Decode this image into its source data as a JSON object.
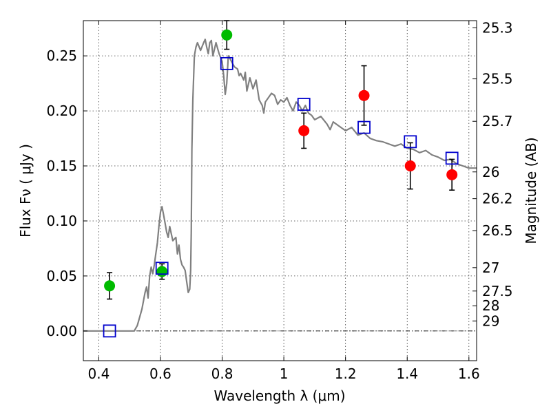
{
  "chart_data": {
    "type": "scatter",
    "xlabel": "Wavelength  λ (μm)",
    "ylabel": "Flux  Fν  ( μJy )",
    "y2label": "Magnitude (AB)",
    "xlim": [
      0.35,
      1.625
    ],
    "ylim": [
      -0.027,
      0.282
    ],
    "grid": true,
    "x_ticks": [
      0.4,
      0.6,
      0.8,
      1.0,
      1.2,
      1.4,
      1.6
    ],
    "x_tick_labels": [
      "0.4",
      "0.6",
      "0.8",
      "1",
      "1.2",
      "1.4",
      "1.6"
    ],
    "y_ticks": [
      0.0,
      0.05,
      0.1,
      0.15,
      0.2,
      0.25
    ],
    "y_tick_labels": [
      "0.00",
      "0.05",
      "0.10",
      "0.15",
      "0.20",
      "0.25"
    ],
    "magnitude_ticks": [
      25.3,
      25.5,
      25.7,
      26,
      26.2,
      26.5,
      27,
      27.5,
      28,
      29
    ],
    "magnitude_tick_labels": [
      "25.3",
      "25.5",
      "25.7",
      "26",
      "26.2",
      "26.5",
      "27",
      "27.5",
      "28",
      "29"
    ],
    "colors": {
      "model": "#808080",
      "green_points": "#00bb00",
      "red_points": "#ff0000",
      "model_squares": "#0000cc",
      "errorbar": "#000000"
    },
    "model_spectrum": {
      "x": [
        0.35,
        0.515,
        0.525,
        0.54,
        0.55,
        0.555,
        0.56,
        0.565,
        0.57,
        0.575,
        0.58,
        0.585,
        0.59,
        0.595,
        0.6,
        0.605,
        0.61,
        0.615,
        0.62,
        0.625,
        0.63,
        0.64,
        0.65,
        0.655,
        0.66,
        0.665,
        0.67,
        0.675,
        0.68,
        0.685,
        0.69,
        0.695,
        0.698,
        0.7,
        0.702,
        0.705,
        0.71,
        0.715,
        0.72,
        0.73,
        0.74,
        0.745,
        0.75,
        0.755,
        0.76,
        0.765,
        0.77,
        0.78,
        0.79,
        0.8,
        0.805,
        0.81,
        0.815,
        0.82,
        0.825,
        0.83,
        0.84,
        0.85,
        0.855,
        0.86,
        0.87,
        0.875,
        0.88,
        0.89,
        0.9,
        0.91,
        0.92,
        0.93,
        0.935,
        0.94,
        0.95,
        0.96,
        0.97,
        0.98,
        0.99,
        1.0,
        1.01,
        1.02,
        1.03,
        1.04,
        1.05,
        1.06,
        1.07,
        1.08,
        1.09,
        1.1,
        1.12,
        1.14,
        1.15,
        1.16,
        1.18,
        1.2,
        1.22,
        1.24,
        1.26,
        1.28,
        1.3,
        1.32,
        1.34,
        1.36,
        1.38,
        1.4,
        1.42,
        1.44,
        1.46,
        1.48,
        1.5,
        1.52,
        1.54,
        1.56,
        1.58,
        1.6,
        1.625
      ],
      "y": [
        0.0,
        0.0,
        0.005,
        0.02,
        0.035,
        0.04,
        0.03,
        0.05,
        0.058,
        0.052,
        0.06,
        0.07,
        0.08,
        0.095,
        0.108,
        0.113,
        0.106,
        0.098,
        0.09,
        0.085,
        0.095,
        0.082,
        0.085,
        0.07,
        0.078,
        0.065,
        0.06,
        0.058,
        0.055,
        0.045,
        0.035,
        0.038,
        0.055,
        0.09,
        0.165,
        0.21,
        0.25,
        0.258,
        0.262,
        0.255,
        0.262,
        0.265,
        0.258,
        0.252,
        0.262,
        0.264,
        0.25,
        0.262,
        0.252,
        0.245,
        0.232,
        0.215,
        0.225,
        0.25,
        0.248,
        0.245,
        0.24,
        0.238,
        0.232,
        0.234,
        0.228,
        0.235,
        0.218,
        0.23,
        0.22,
        0.228,
        0.21,
        0.205,
        0.198,
        0.208,
        0.212,
        0.216,
        0.214,
        0.206,
        0.21,
        0.208,
        0.212,
        0.205,
        0.2,
        0.208,
        0.205,
        0.2,
        0.205,
        0.198,
        0.196,
        0.192,
        0.195,
        0.188,
        0.183,
        0.19,
        0.186,
        0.182,
        0.185,
        0.178,
        0.18,
        0.175,
        0.173,
        0.172,
        0.17,
        0.168,
        0.17,
        0.166,
        0.165,
        0.162,
        0.164,
        0.16,
        0.158,
        0.155,
        0.156,
        0.152,
        0.15,
        0.148,
        0.148
      ]
    },
    "series": [
      {
        "marker": "filled-circle",
        "color": "green",
        "x": [
          0.435,
          0.605,
          0.815
        ],
        "y": [
          0.041,
          0.054,
          0.269
        ],
        "yerr": [
          0.012,
          0.007,
          0.013
        ]
      },
      {
        "marker": "filled-circle",
        "color": "red",
        "x": [
          1.065,
          1.26,
          1.41,
          1.545
        ],
        "y": [
          0.182,
          0.214,
          0.15,
          0.142
        ],
        "yerr": [
          0.016,
          0.027,
          0.021,
          0.014
        ]
      },
      {
        "marker": "open-square",
        "color": "blue",
        "x": [
          0.435,
          0.605,
          0.815,
          1.065,
          1.26,
          1.41,
          1.545
        ],
        "y": [
          0.0,
          0.057,
          0.243,
          0.206,
          0.185,
          0.172,
          0.157
        ]
      }
    ]
  }
}
